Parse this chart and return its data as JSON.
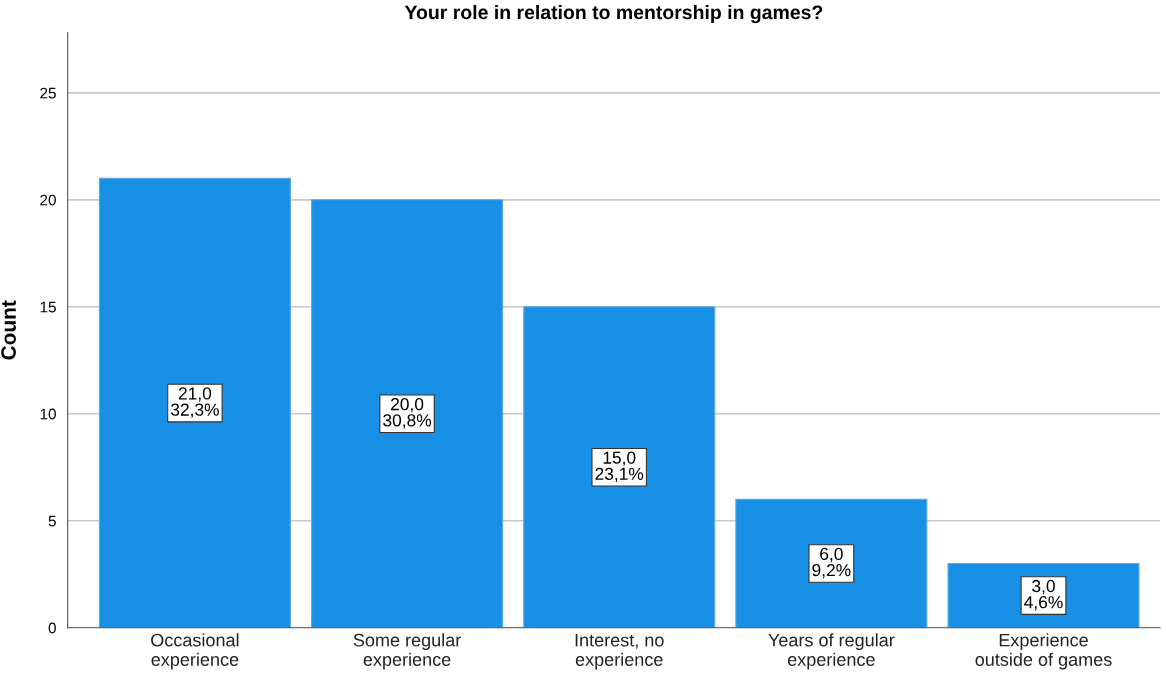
{
  "chart_data": {
    "type": "bar",
    "title": "Your role in relation to mentorship in games?",
    "ylabel": "Count",
    "categories": [
      "Occasional\nexperience",
      "Some regular\nexperience",
      "Interest, no\nexperience",
      "Years of regular\nexperience",
      "Experience\noutside of games"
    ],
    "values": [
      21,
      20,
      15,
      6,
      3
    ],
    "value_labels": [
      "21,0\n32,3%",
      "20,0\n30,8%",
      "15,0\n23,1%",
      "6,0\n9,2%",
      "3,0\n4,6%"
    ],
    "color": "#1790e6",
    "ylim": [
      0,
      27.8
    ],
    "yticks": [
      0,
      5,
      10,
      15,
      20,
      25
    ],
    "grid": "y"
  }
}
